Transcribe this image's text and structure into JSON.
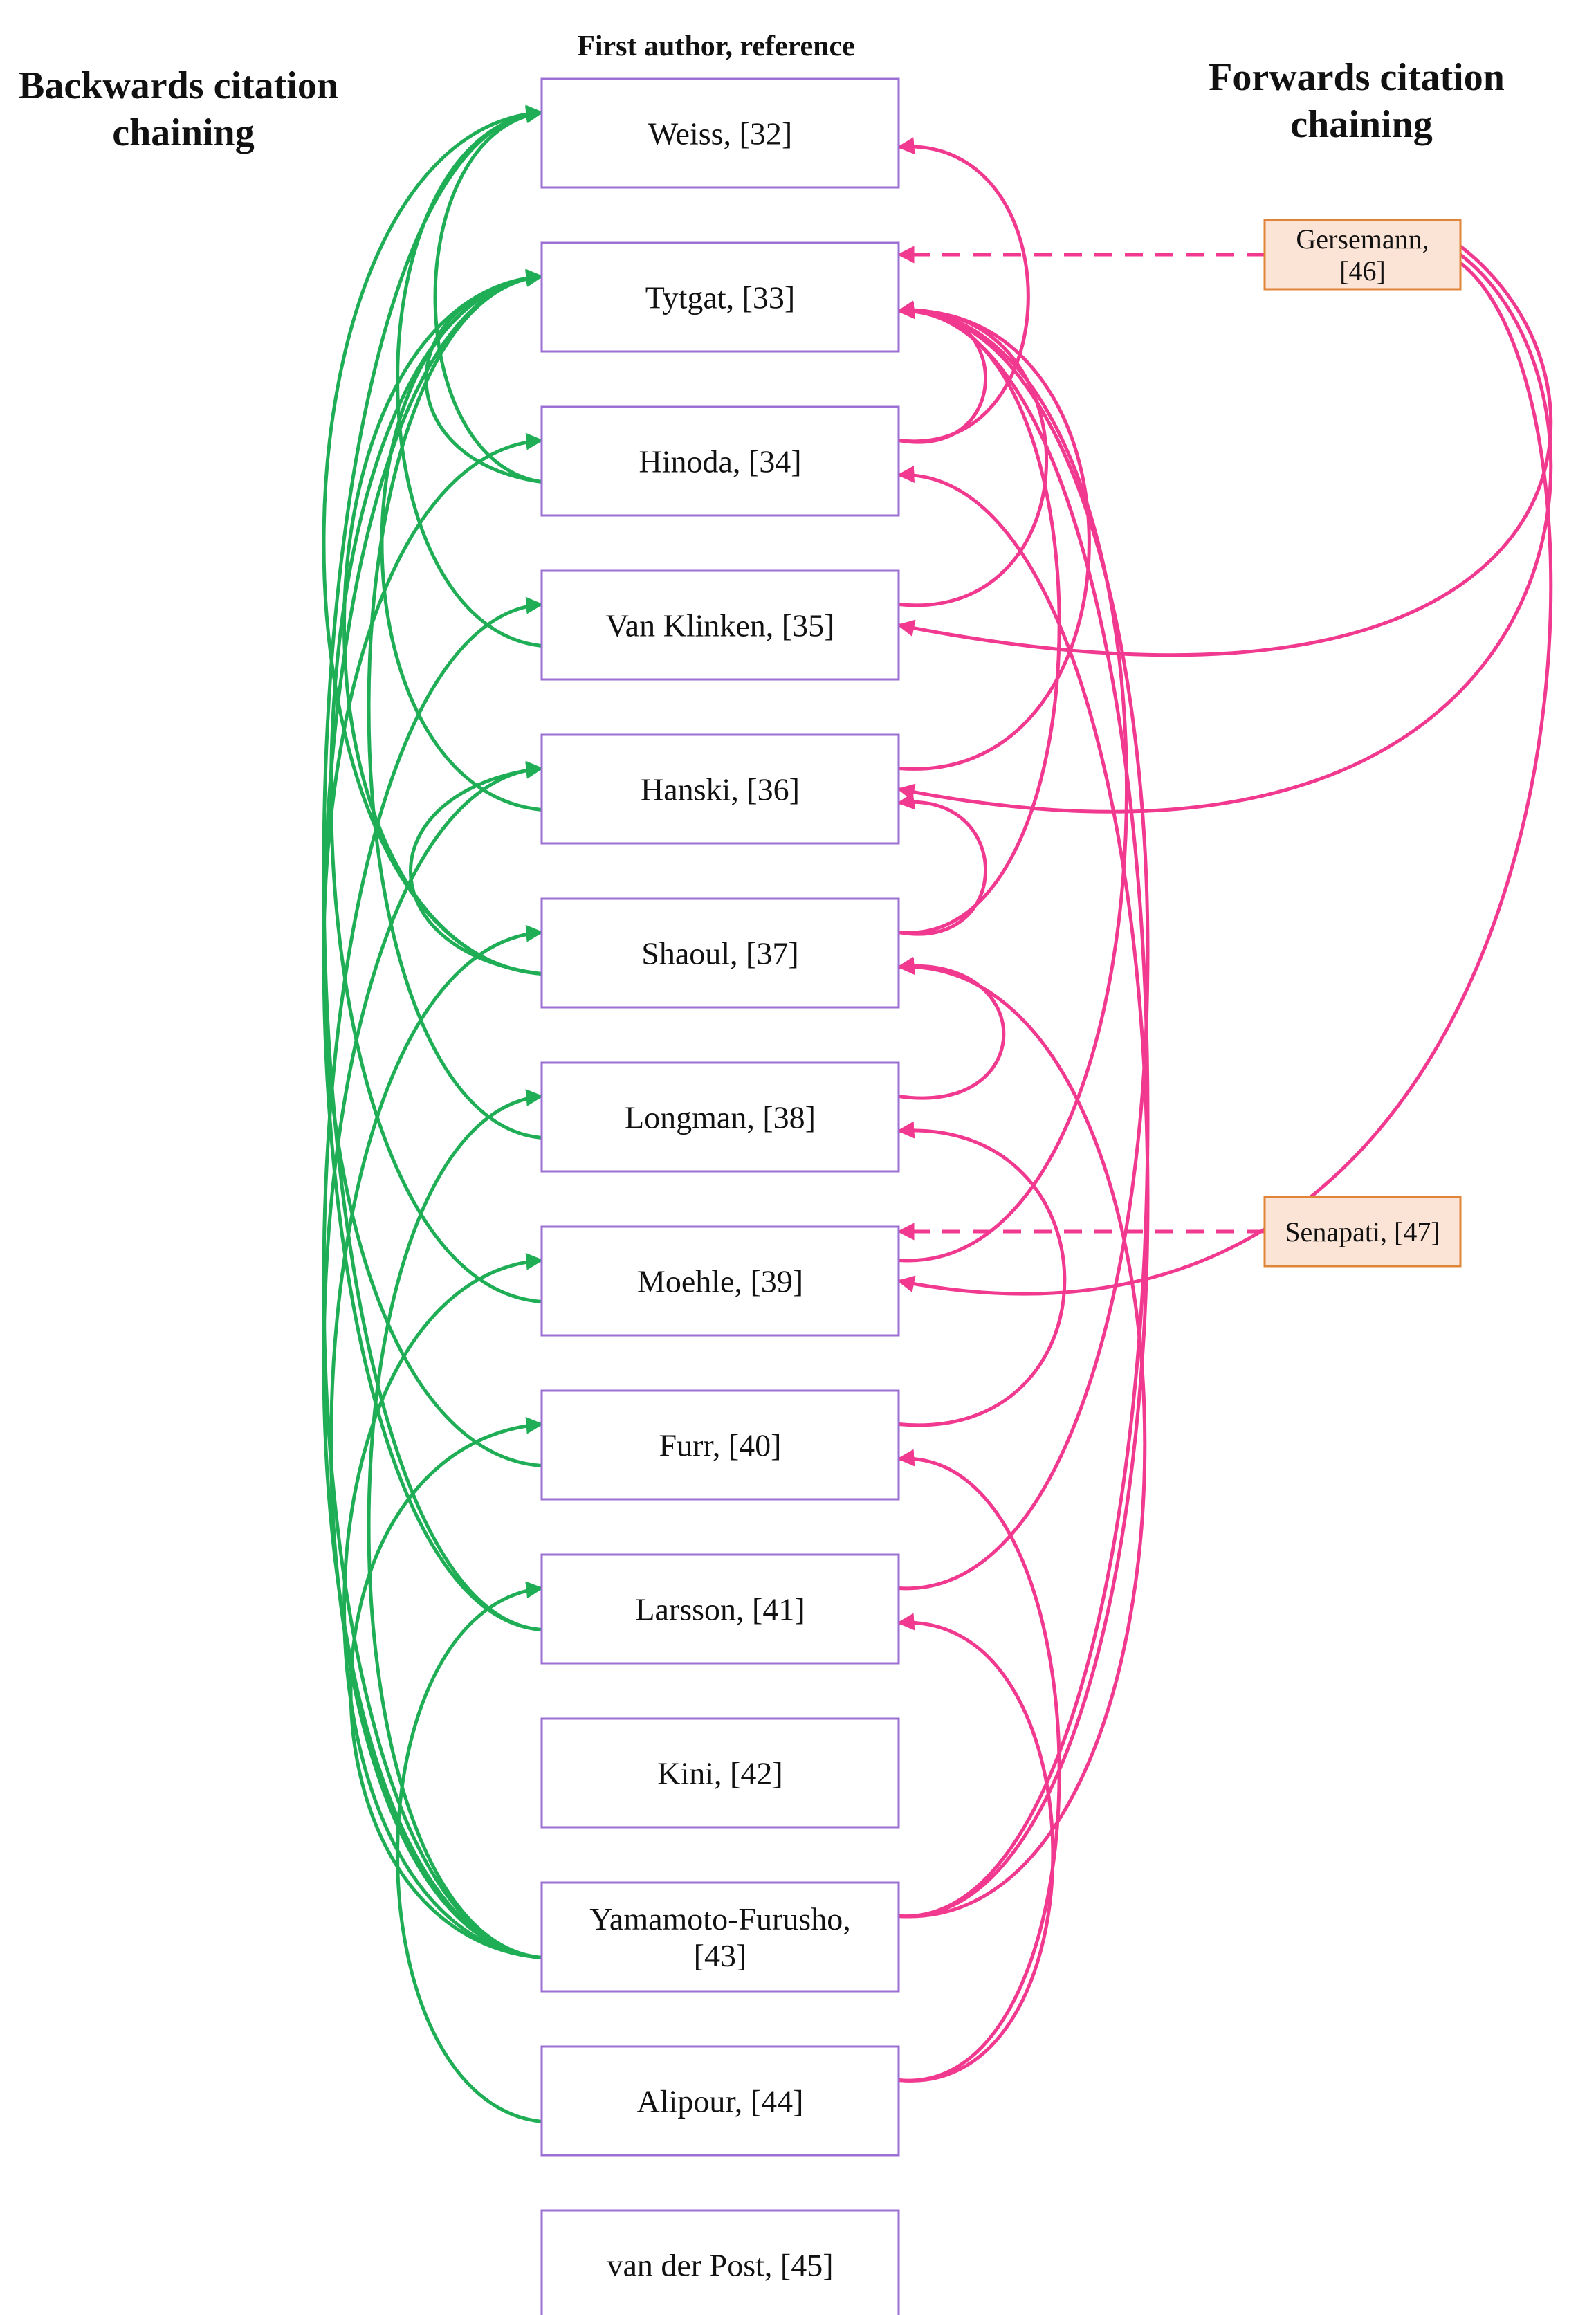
{
  "headings": {
    "backwards": [
      "Backwards citation",
      "chaining"
    ],
    "center": "First author, reference",
    "forwards": [
      "Forwards citation",
      "chaining"
    ]
  },
  "colors": {
    "backward_edges": "#1fae55",
    "forward_edges": "#f0398f",
    "paper_border": "#9b6fd3",
    "forward_box_fill": "#fbe4d5",
    "forward_box_border": "#e0843a"
  },
  "papers": [
    {
      "id": "weiss",
      "lines": [
        "Weiss, [32]"
      ]
    },
    {
      "id": "tytgat",
      "lines": [
        "Tytgat, [33]"
      ]
    },
    {
      "id": "hinoda",
      "lines": [
        "Hinoda, [34]"
      ]
    },
    {
      "id": "vanklinken",
      "lines": [
        "Van Klinken, [35]"
      ]
    },
    {
      "id": "hanski",
      "lines": [
        "Hanski, [36]"
      ]
    },
    {
      "id": "shaoul",
      "lines": [
        "Shaoul, [37]"
      ]
    },
    {
      "id": "longman",
      "lines": [
        "Longman, [38]"
      ]
    },
    {
      "id": "moehle",
      "lines": [
        "Moehle, [39]"
      ]
    },
    {
      "id": "furr",
      "lines": [
        "Furr, [40]"
      ]
    },
    {
      "id": "larsson",
      "lines": [
        "Larsson, [41]"
      ]
    },
    {
      "id": "kini",
      "lines": [
        "Kini, [42]"
      ]
    },
    {
      "id": "yamamoto",
      "lines": [
        "Yamamoto-Furusho,",
        "[43]"
      ]
    },
    {
      "id": "alipour",
      "lines": [
        "Alipour, [44]"
      ]
    },
    {
      "id": "vanderpost",
      "lines": [
        "van der Post, [45]"
      ]
    }
  ],
  "forward_papers": [
    {
      "id": "gersemann",
      "lines": [
        "Gersemann,",
        "[46]"
      ]
    },
    {
      "id": "senapati",
      "lines": [
        "Senapati, [47]"
      ]
    }
  ],
  "backward_citations": [
    [
      "hinoda",
      "weiss"
    ],
    [
      "vanklinken",
      "weiss"
    ],
    [
      "hanski",
      "tytgat"
    ],
    [
      "shaoul",
      "tytgat"
    ],
    [
      "shaoul",
      "weiss"
    ],
    [
      "longman",
      "tytgat"
    ],
    [
      "moehle",
      "tytgat"
    ],
    [
      "furr",
      "hinoda"
    ],
    [
      "larsson",
      "tytgat"
    ],
    [
      "larsson",
      "weiss"
    ],
    [
      "yamamoto",
      "vanklinken"
    ],
    [
      "yamamoto",
      "shaoul"
    ],
    [
      "yamamoto",
      "hanski"
    ],
    [
      "yamamoto",
      "moehle"
    ],
    [
      "yamamoto",
      "furr"
    ],
    [
      "yamamoto",
      "longman"
    ],
    [
      "alipour",
      "larsson"
    ],
    [
      "hinoda",
      "tytgat"
    ],
    [
      "shaoul",
      "hanski"
    ]
  ],
  "forward_citations": [
    [
      "tytgat",
      "hinoda"
    ],
    [
      "weiss",
      "hinoda"
    ],
    [
      "tytgat",
      "vanklinken"
    ],
    [
      "tytgat",
      "hanski"
    ],
    [
      "tytgat",
      "shaoul"
    ],
    [
      "tytgat",
      "moehle"
    ],
    [
      "tytgat",
      "larsson"
    ],
    [
      "tytgat",
      "yamamoto"
    ],
    [
      "hanski",
      "shaoul"
    ],
    [
      "shaoul",
      "longman"
    ],
    [
      "shaoul",
      "yamamoto"
    ],
    [
      "longman",
      "furr"
    ],
    [
      "furr",
      "alipour"
    ],
    [
      "larsson",
      "alipour"
    ],
    [
      "hinoda",
      "yamamoto"
    ],
    [
      "vanklinken",
      "gersemann"
    ],
    [
      "hanski",
      "gersemann"
    ],
    [
      "moehle",
      "gersemann"
    ]
  ],
  "dashed_links": [
    [
      "gersemann",
      "tytgat"
    ],
    [
      "senapati",
      "moehle"
    ]
  ]
}
